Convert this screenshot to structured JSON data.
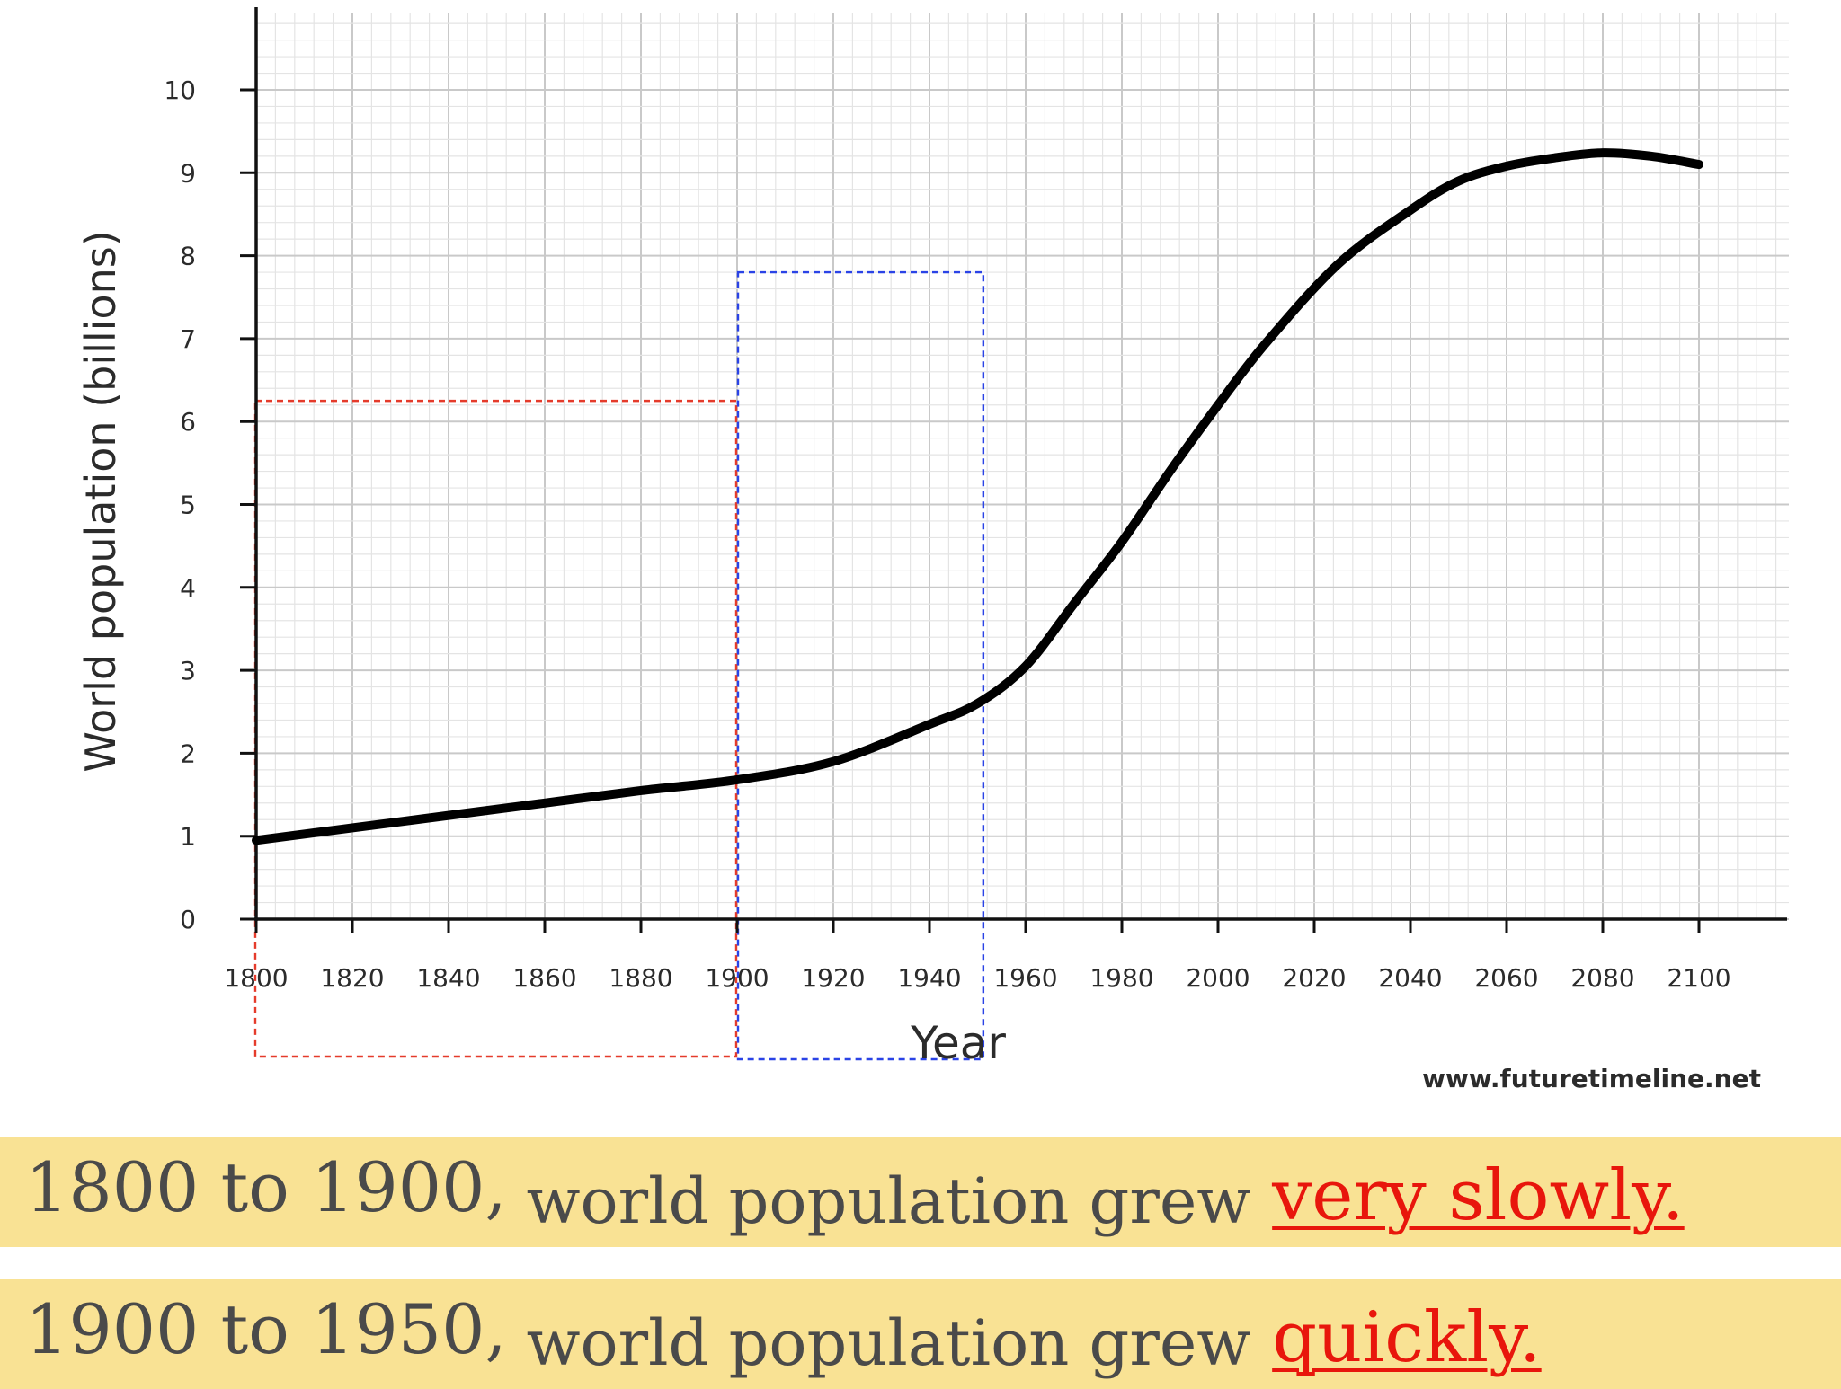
{
  "chart_data": {
    "type": "line",
    "title": "",
    "xlabel": "Year",
    "ylabel": "World population (billions)",
    "xlim": [
      1800,
      2120
    ],
    "ylim": [
      0,
      10.5
    ],
    "x_ticks": [
      1800,
      1820,
      1840,
      1860,
      1880,
      1900,
      1920,
      1940,
      1960,
      1980,
      2000,
      2020,
      2040,
      2060,
      2080,
      2100
    ],
    "y_ticks": [
      0,
      1,
      2,
      3,
      4,
      5,
      6,
      7,
      8,
      9,
      10
    ],
    "grid": true,
    "series": [
      {
        "x": [
          1800,
          1820,
          1840,
          1860,
          1880,
          1900,
          1920,
          1940,
          1950,
          1960,
          1970,
          1980,
          1990,
          2000,
          2010,
          2025,
          2040,
          2050,
          2060,
          2070,
          2080,
          2090,
          2100
        ],
        "y": [
          0.95,
          1.1,
          1.25,
          1.4,
          1.55,
          1.68,
          1.9,
          2.35,
          2.6,
          3.05,
          3.8,
          4.55,
          5.4,
          6.2,
          6.95,
          7.9,
          8.55,
          8.9,
          9.08,
          9.18,
          9.24,
          9.2,
          9.1
        ],
        "color": "#000000"
      }
    ],
    "highlight_boxes": [
      {
        "x_from": 1800,
        "x_to": 1900,
        "y_top": 6.25,
        "color": "#e53b2b"
      },
      {
        "x_from": 1900,
        "x_to": 1951,
        "y_top": 7.8,
        "color": "#2a43e6"
      }
    ],
    "source": "www.futuretimeline.net"
  },
  "captions": [
    {
      "range": "1800 to 1900,",
      "body": "world population grew",
      "emphasis": "very slowly."
    },
    {
      "range": "1900 to 1950,",
      "body": "world population grew",
      "emphasis": "quickly."
    }
  ]
}
